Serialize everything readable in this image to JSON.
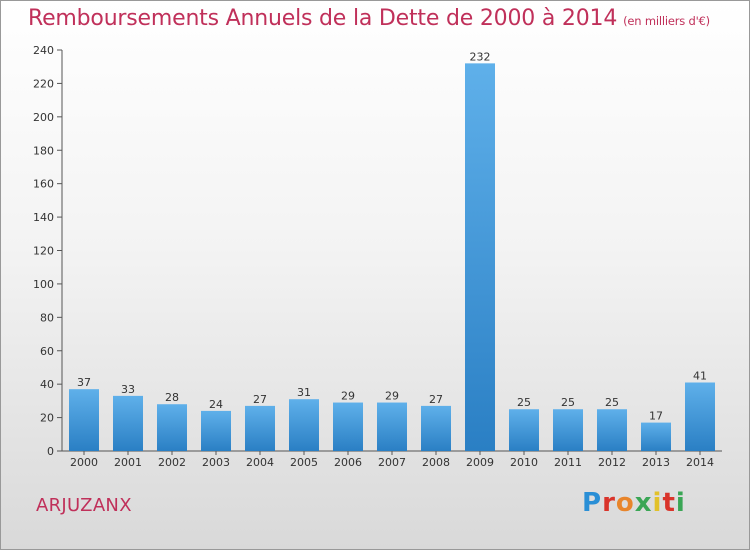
{
  "header": {
    "title": "Remboursements Annuels de la Dette de 2000 à 2014",
    "subtitle": "(en milliers d'€)"
  },
  "commune": "ARJUZANX",
  "logo": {
    "text": "Proxiti"
  },
  "colors": {
    "accent": "#c0305a",
    "bar_top": "#5fb0ea",
    "bar_bottom": "#2a7fc4"
  },
  "chart_data": {
    "type": "bar",
    "title": "Remboursements Annuels de la Dette de 2000 à 2014",
    "subtitle": "(en milliers d'€)",
    "categories": [
      "2000",
      "2001",
      "2002",
      "2003",
      "2004",
      "2005",
      "2006",
      "2007",
      "2008",
      "2009",
      "2010",
      "2011",
      "2012",
      "2013",
      "2014"
    ],
    "values": [
      37,
      33,
      28,
      24,
      27,
      31,
      29,
      29,
      27,
      232,
      25,
      25,
      25,
      17,
      41
    ],
    "ylim": [
      0,
      240
    ],
    "yticks": [
      0,
      20,
      40,
      60,
      80,
      100,
      120,
      140,
      160,
      180,
      200,
      220,
      240
    ],
    "grid": false,
    "legend": "none"
  }
}
